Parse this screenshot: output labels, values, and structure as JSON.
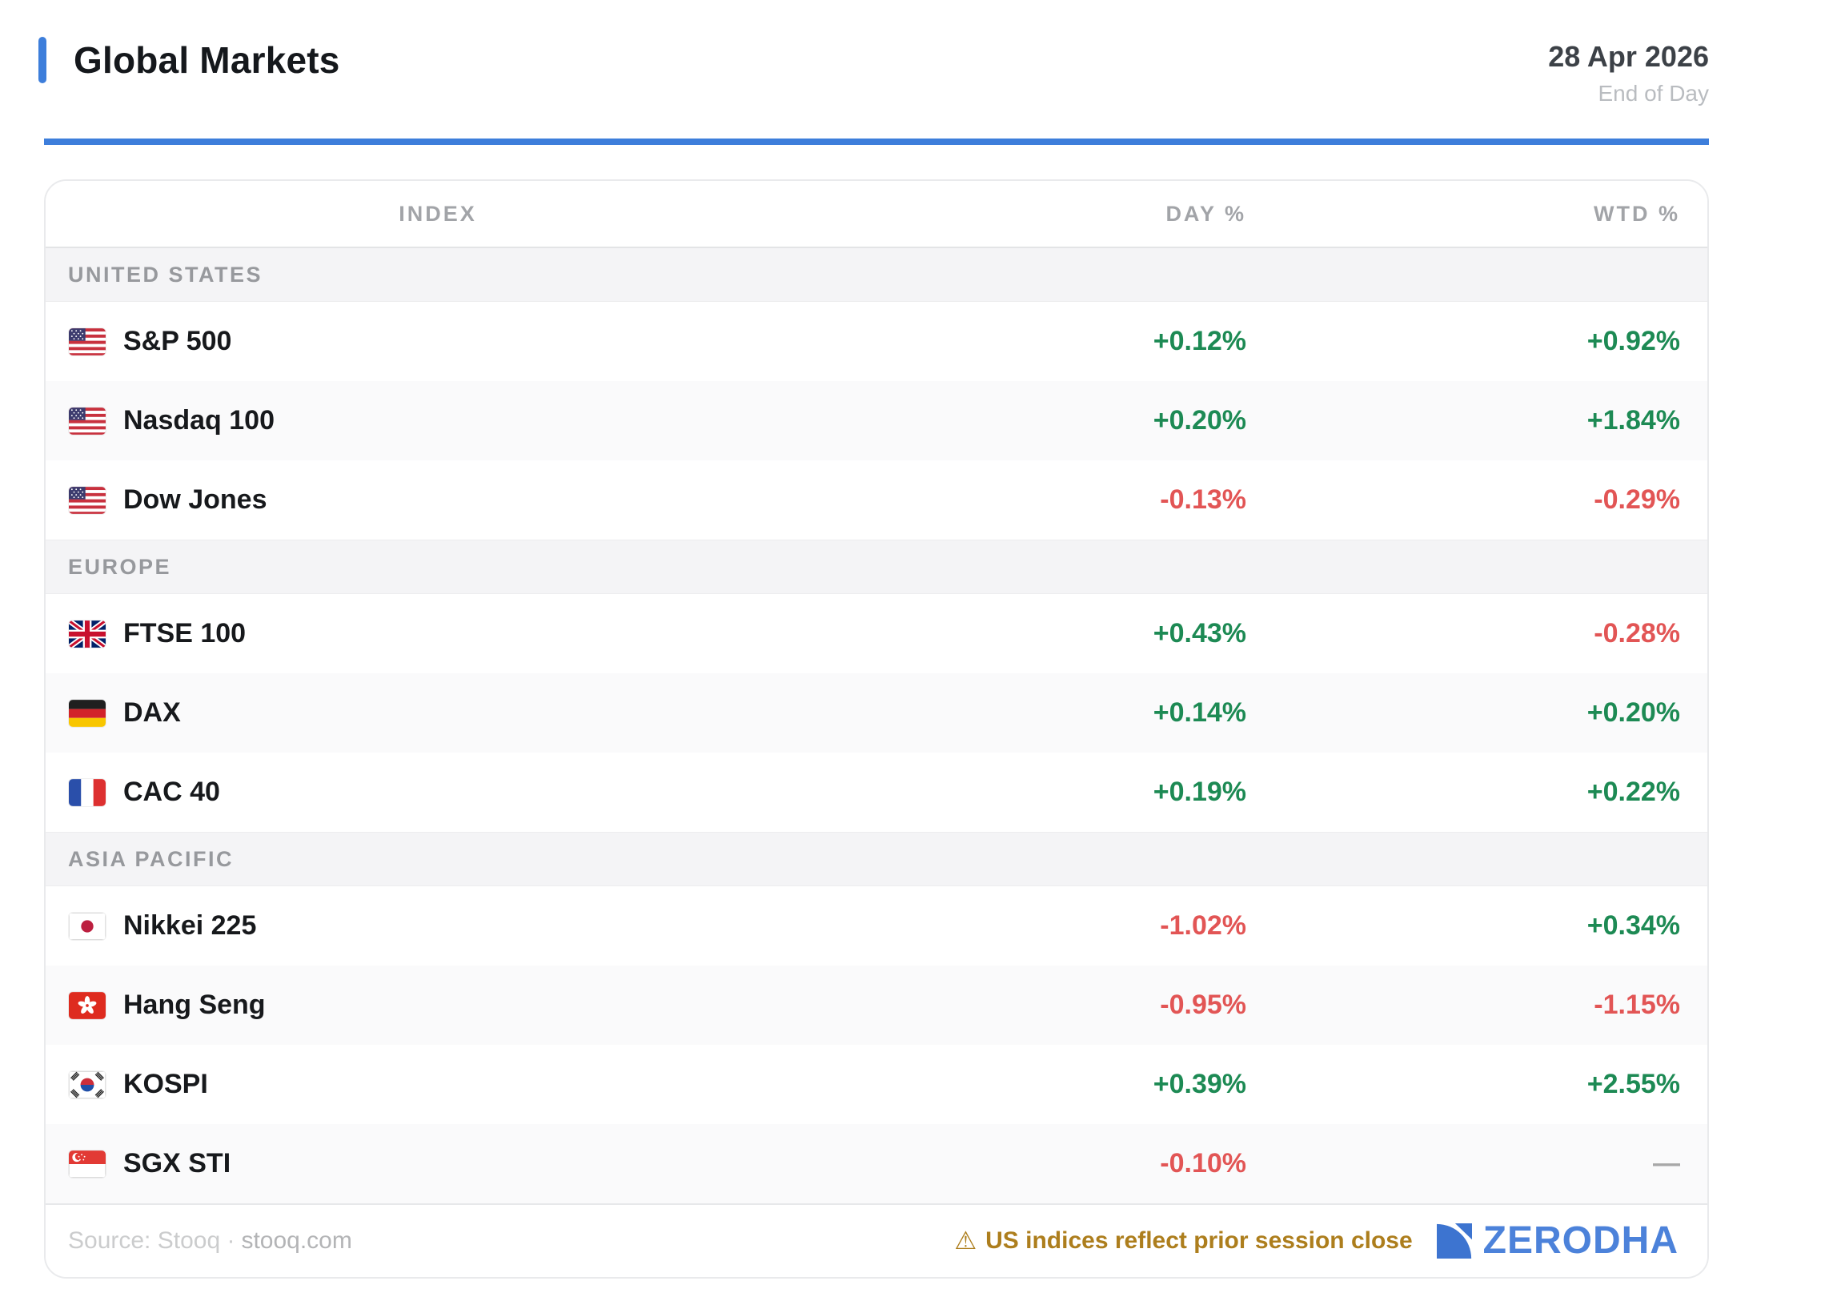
{
  "header": {
    "title": "Global Markets",
    "date": "28 Apr 2026",
    "subtitle": "End of Day"
  },
  "table": {
    "columns": [
      "INDEX",
      "DAY %",
      "WTD %"
    ],
    "sections": [
      {
        "label": "UNITED STATES",
        "rows": [
          {
            "flag": "us",
            "name": "S&P 500",
            "day": "+0.12%",
            "day_dir": "up",
            "wtd": "+0.92%",
            "wtd_dir": "up"
          },
          {
            "flag": "us",
            "name": "Nasdaq 100",
            "day": "+0.20%",
            "day_dir": "up",
            "wtd": "+1.84%",
            "wtd_dir": "up"
          },
          {
            "flag": "us",
            "name": "Dow Jones",
            "day": "-0.13%",
            "day_dir": "down",
            "wtd": "-0.29%",
            "wtd_dir": "down"
          }
        ]
      },
      {
        "label": "EUROPE",
        "rows": [
          {
            "flag": "gb",
            "name": "FTSE 100",
            "day": "+0.43%",
            "day_dir": "up",
            "wtd": "-0.28%",
            "wtd_dir": "down"
          },
          {
            "flag": "de",
            "name": "DAX",
            "day": "+0.14%",
            "day_dir": "up",
            "wtd": "+0.20%",
            "wtd_dir": "up"
          },
          {
            "flag": "fr",
            "name": "CAC 40",
            "day": "+0.19%",
            "day_dir": "up",
            "wtd": "+0.22%",
            "wtd_dir": "up"
          }
        ]
      },
      {
        "label": "ASIA PACIFIC",
        "rows": [
          {
            "flag": "jp",
            "name": "Nikkei 225",
            "day": "-1.02%",
            "day_dir": "down",
            "wtd": "+0.34%",
            "wtd_dir": "up"
          },
          {
            "flag": "hk",
            "name": "Hang Seng",
            "day": "-0.95%",
            "day_dir": "down",
            "wtd": "-1.15%",
            "wtd_dir": "down"
          },
          {
            "flag": "kr",
            "name": "KOSPI",
            "day": "+0.39%",
            "day_dir": "up",
            "wtd": "+2.55%",
            "wtd_dir": "up"
          },
          {
            "flag": "sg",
            "name": "SGX STI",
            "day": "-0.10%",
            "day_dir": "down",
            "wtd": "—",
            "wtd_dir": "neutral"
          }
        ]
      }
    ]
  },
  "footer": {
    "source_prefix": "Source: Stooq ·",
    "source_link": "stooq.com",
    "warning_icon": "⚠",
    "warning_text": "US indices reflect prior session close",
    "brand": "ZERODHA"
  },
  "colors": {
    "accent": "#3d7edb",
    "positive": "#1d8a54",
    "negative": "#e25555",
    "neutral": "#a8a8a8",
    "warning": "#ad7e1d",
    "brand": "#4c82da"
  }
}
